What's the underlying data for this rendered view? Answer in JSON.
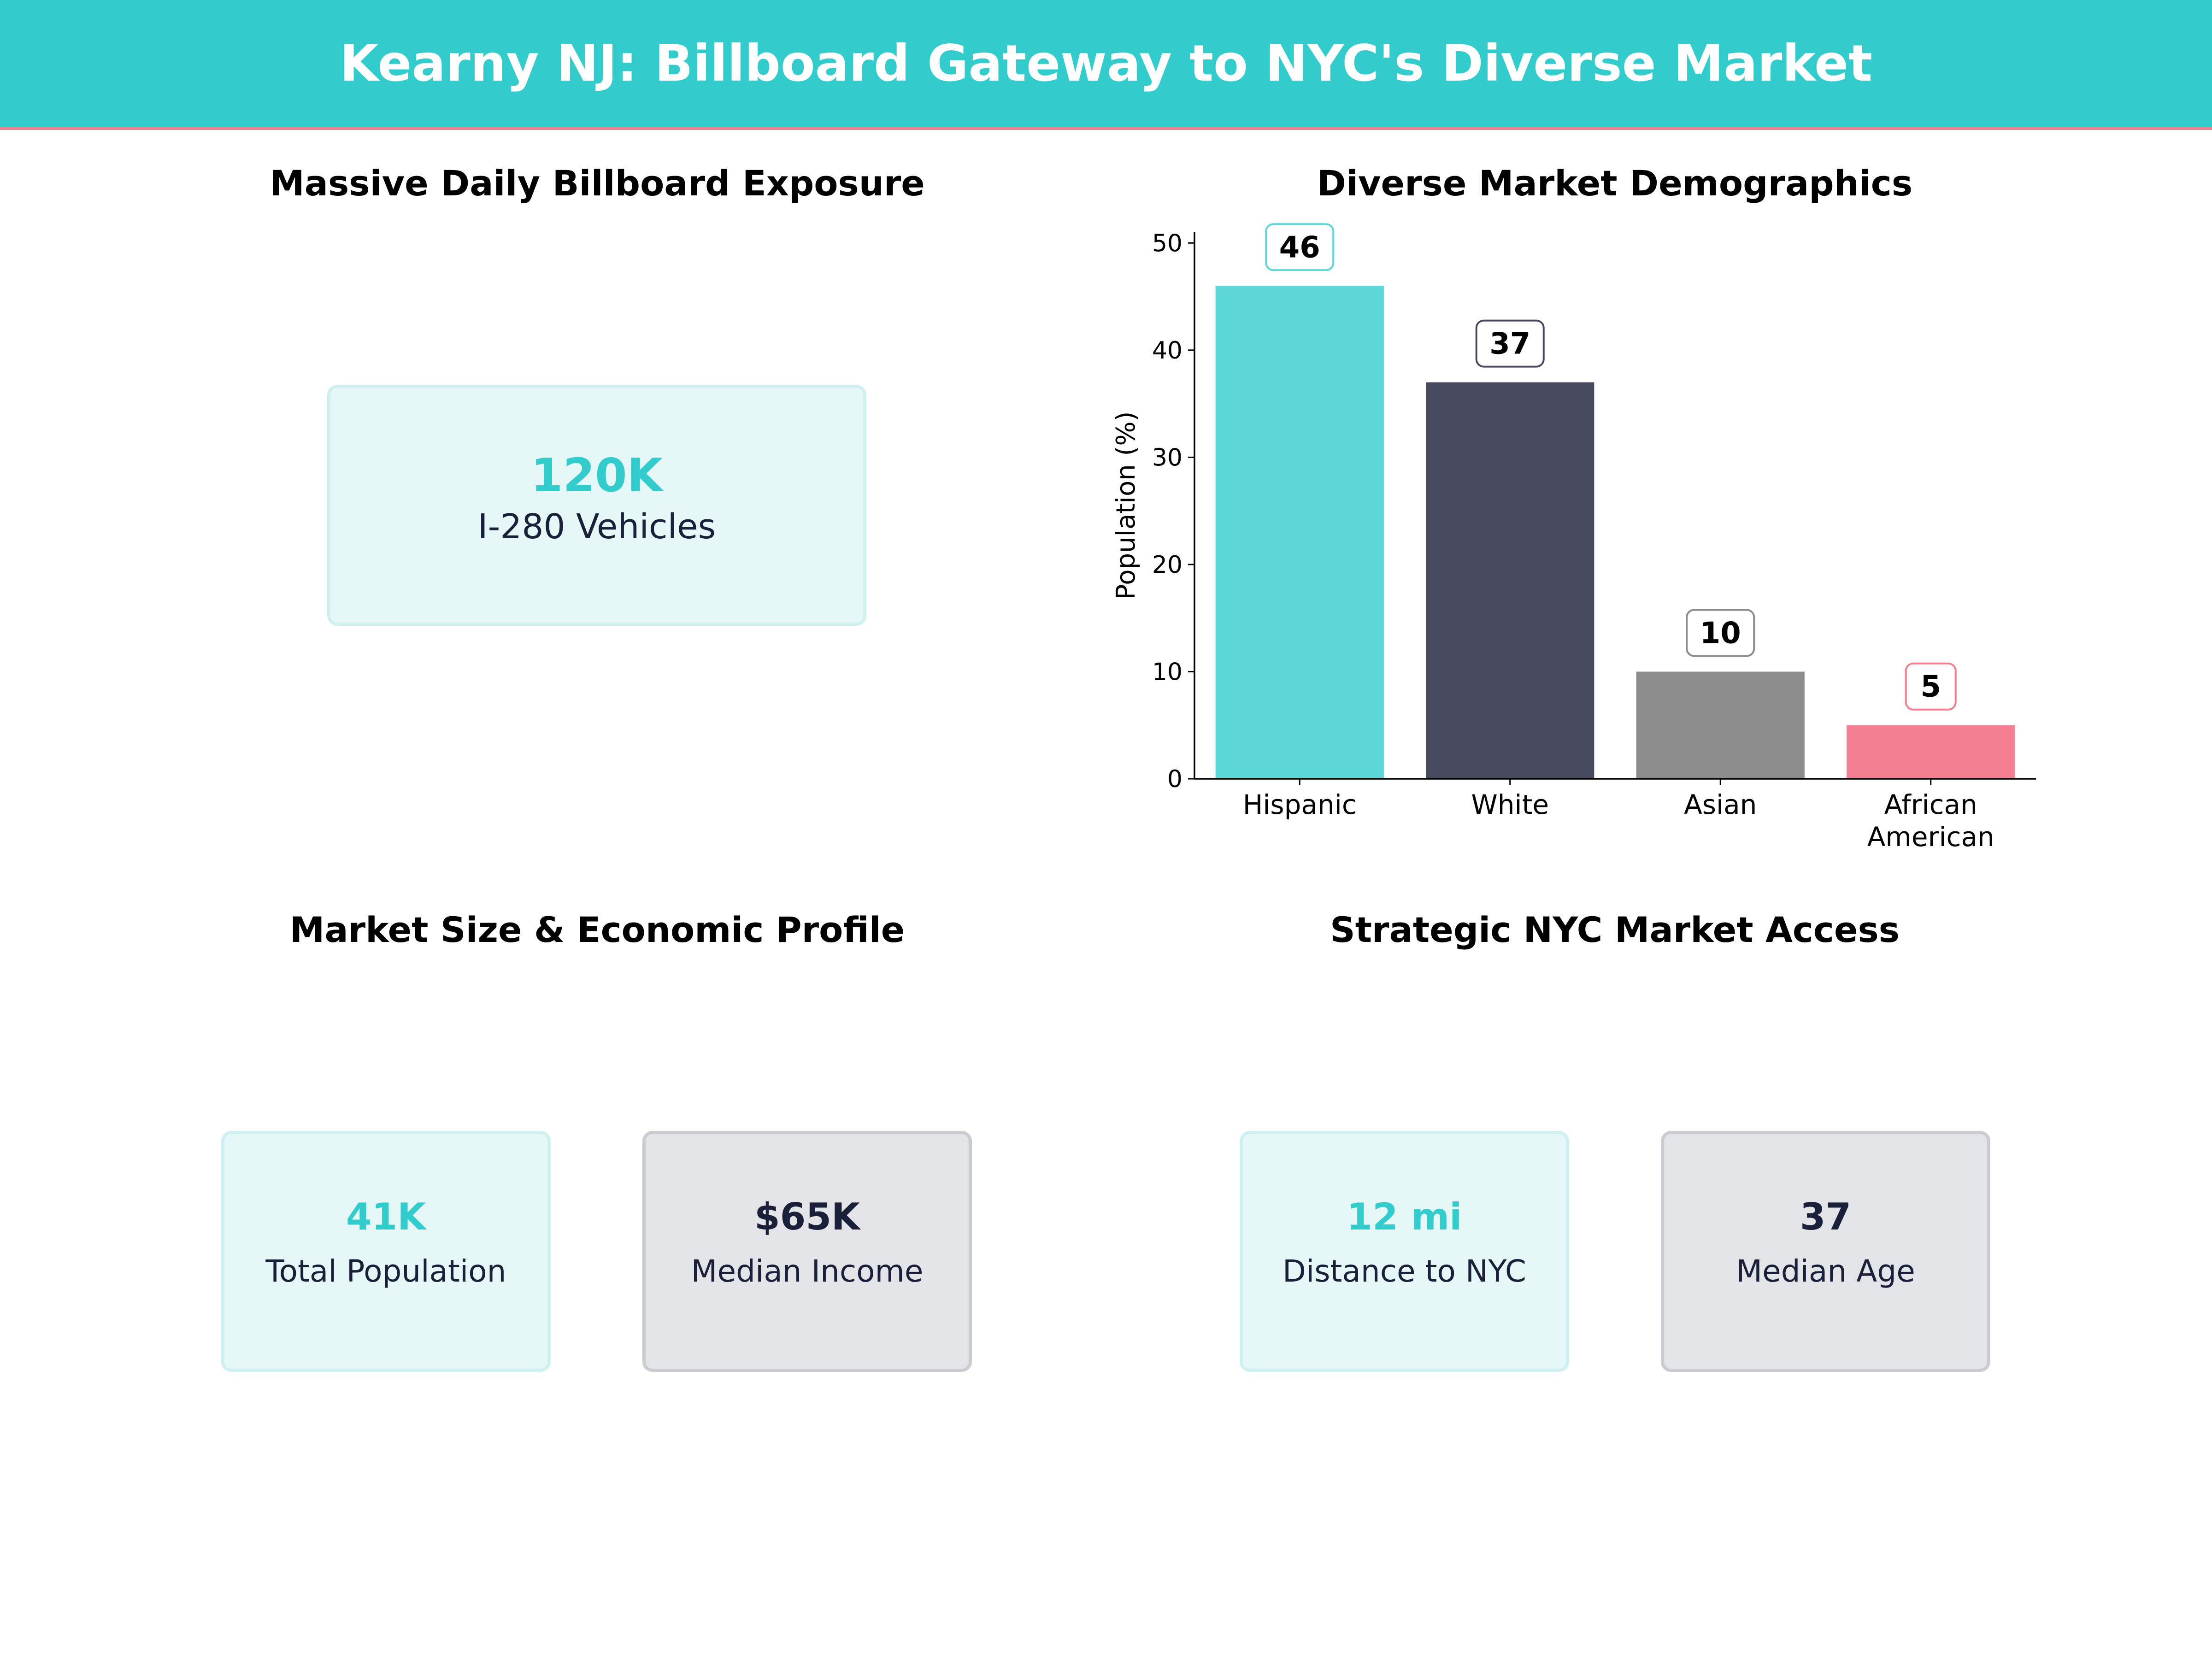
{
  "title": "Kearny NJ: Billboard Gateway to NYC's Diverse Market",
  "colors": {
    "header_bg": "#33cccc",
    "header_accent": "#f08090",
    "teal": "#33cccc",
    "navy": "#1a1f3a"
  },
  "panels": {
    "exposure": {
      "title": "Massive Daily Billboard Exposure",
      "card": {
        "value": "120K",
        "label": "I-280 Vehicles"
      }
    },
    "demographics": {
      "title": "Diverse Market Demographics"
    },
    "market": {
      "title": "Market Size & Economic Profile",
      "cards": [
        {
          "value": "41K",
          "label": "Total Population",
          "style": "teal"
        },
        {
          "value": "$65K",
          "label": "Median Income",
          "style": "navy"
        }
      ]
    },
    "access": {
      "title": "Strategic NYC Market Access",
      "cards": [
        {
          "value": "12 mi",
          "label": "Distance to NYC",
          "style": "teal"
        },
        {
          "value": "37",
          "label": "Median Age",
          "style": "navy"
        }
      ]
    }
  },
  "chart_data": {
    "type": "bar",
    "title": "Diverse Market Demographics",
    "xlabel": "",
    "ylabel": "Population (%)",
    "categories": [
      [
        "Hispanic"
      ],
      [
        "White"
      ],
      [
        "Asian"
      ],
      [
        "African",
        "American"
      ]
    ],
    "values": [
      46,
      37,
      10,
      5
    ],
    "colors": [
      "#5cd6d6",
      "#474a5e",
      "#8c8c8c",
      "#f47f92"
    ],
    "label_border_colors": [
      "#5cd6d6",
      "#474a5e",
      "#8c8c8c",
      "#f47f92"
    ],
    "ylim": [
      0,
      51
    ],
    "yticks": [
      0,
      10,
      20,
      30,
      40,
      50
    ],
    "grid": false
  }
}
